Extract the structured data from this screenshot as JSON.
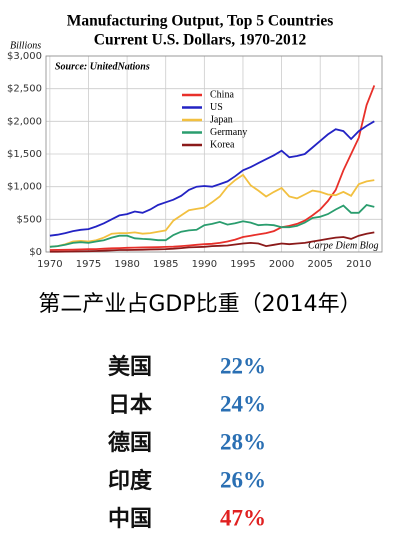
{
  "chart_data": {
    "type": "line",
    "title": "Manufacturing Output, Top 5 Countries",
    "subtitle": "Current U.S. Dollars, 1970-2012",
    "y_label": "Billions",
    "source": "Source: UnitedNations",
    "annotation": "Carpe Diem Blog",
    "x": [
      1970,
      1971,
      1972,
      1973,
      1974,
      1975,
      1976,
      1977,
      1978,
      1979,
      1980,
      1981,
      1982,
      1983,
      1984,
      1985,
      1986,
      1987,
      1988,
      1989,
      1990,
      1991,
      1992,
      1993,
      1994,
      1995,
      1996,
      1997,
      1998,
      1999,
      2000,
      2001,
      2002,
      2003,
      2004,
      2005,
      2006,
      2007,
      2008,
      2009,
      2010,
      2011,
      2012
    ],
    "xlim": [
      1969.5,
      2013
    ],
    "xticks": [
      1970,
      1975,
      1980,
      1985,
      1990,
      1995,
      2000,
      2005,
      2010
    ],
    "ylim": [
      0,
      3000
    ],
    "yticks": [
      {
        "value": 0,
        "label": "$0"
      },
      {
        "value": 500,
        "label": "$500"
      },
      {
        "value": 1000,
        "label": "$1,000"
      },
      {
        "value": 1500,
        "label": "$1,500"
      },
      {
        "value": 2000,
        "label": "$2,000"
      },
      {
        "value": 2500,
        "label": "$2,500"
      },
      {
        "value": 3000,
        "label": "$3,000"
      }
    ],
    "grid": true,
    "series": [
      {
        "name": "China",
        "color": "#e8302a",
        "values": [
          30,
          32,
          34,
          36,
          40,
          44,
          45,
          50,
          56,
          60,
          65,
          68,
          70,
          72,
          75,
          78,
          82,
          90,
          100,
          110,
          120,
          125,
          140,
          160,
          190,
          230,
          250,
          270,
          290,
          320,
          380,
          400,
          430,
          480,
          560,
          650,
          780,
          950,
          1250,
          1500,
          1750,
          2250,
          2550
        ]
      },
      {
        "name": "US",
        "color": "#2323c4",
        "values": [
          250,
          265,
          290,
          320,
          340,
          350,
          390,
          440,
          500,
          560,
          580,
          620,
          600,
          650,
          720,
          760,
          800,
          860,
          950,
          1000,
          1010,
          1000,
          1040,
          1080,
          1160,
          1250,
          1300,
          1360,
          1420,
          1480,
          1550,
          1450,
          1470,
          1500,
          1600,
          1700,
          1800,
          1880,
          1850,
          1730,
          1850,
          1930,
          2000
        ]
      },
      {
        "name": "Japan",
        "color": "#f2c040",
        "values": [
          80,
          90,
          120,
          160,
          170,
          160,
          180,
          220,
          280,
          290,
          290,
          300,
          280,
          290,
          310,
          330,
          480,
          560,
          640,
          660,
          680,
          760,
          850,
          1000,
          1100,
          1180,
          1020,
          940,
          850,
          920,
          980,
          850,
          820,
          880,
          940,
          920,
          880,
          870,
          920,
          860,
          1040,
          1080,
          1100
        ]
      },
      {
        "name": "Germany",
        "color": "#2a9d6e",
        "values": [
          80,
          90,
          110,
          140,
          150,
          140,
          160,
          180,
          220,
          250,
          250,
          210,
          200,
          195,
          180,
          180,
          260,
          310,
          330,
          340,
          410,
          430,
          460,
          420,
          440,
          470,
          450,
          410,
          420,
          410,
          380,
          380,
          400,
          450,
          520,
          540,
          580,
          650,
          710,
          600,
          600,
          720,
          690
        ]
      },
      {
        "name": "Korea",
        "color": "#8b1a1a",
        "values": [
          5,
          5,
          6,
          8,
          10,
          12,
          15,
          20,
          25,
          30,
          30,
          32,
          35,
          38,
          42,
          45,
          50,
          60,
          70,
          75,
          80,
          90,
          95,
          100,
          115,
          130,
          140,
          130,
          90,
          110,
          130,
          120,
          130,
          140,
          160,
          180,
          200,
          220,
          230,
          200,
          250,
          280,
          300
        ]
      }
    ]
  },
  "table": {
    "title": "第二产业占GDP比重（2014年）",
    "rows": [
      [
        "美国",
        "22%"
      ],
      [
        "日本",
        "24%"
      ],
      [
        "德国",
        "28%"
      ],
      [
        "印度",
        "26%"
      ],
      [
        "中国",
        "47%"
      ]
    ]
  }
}
